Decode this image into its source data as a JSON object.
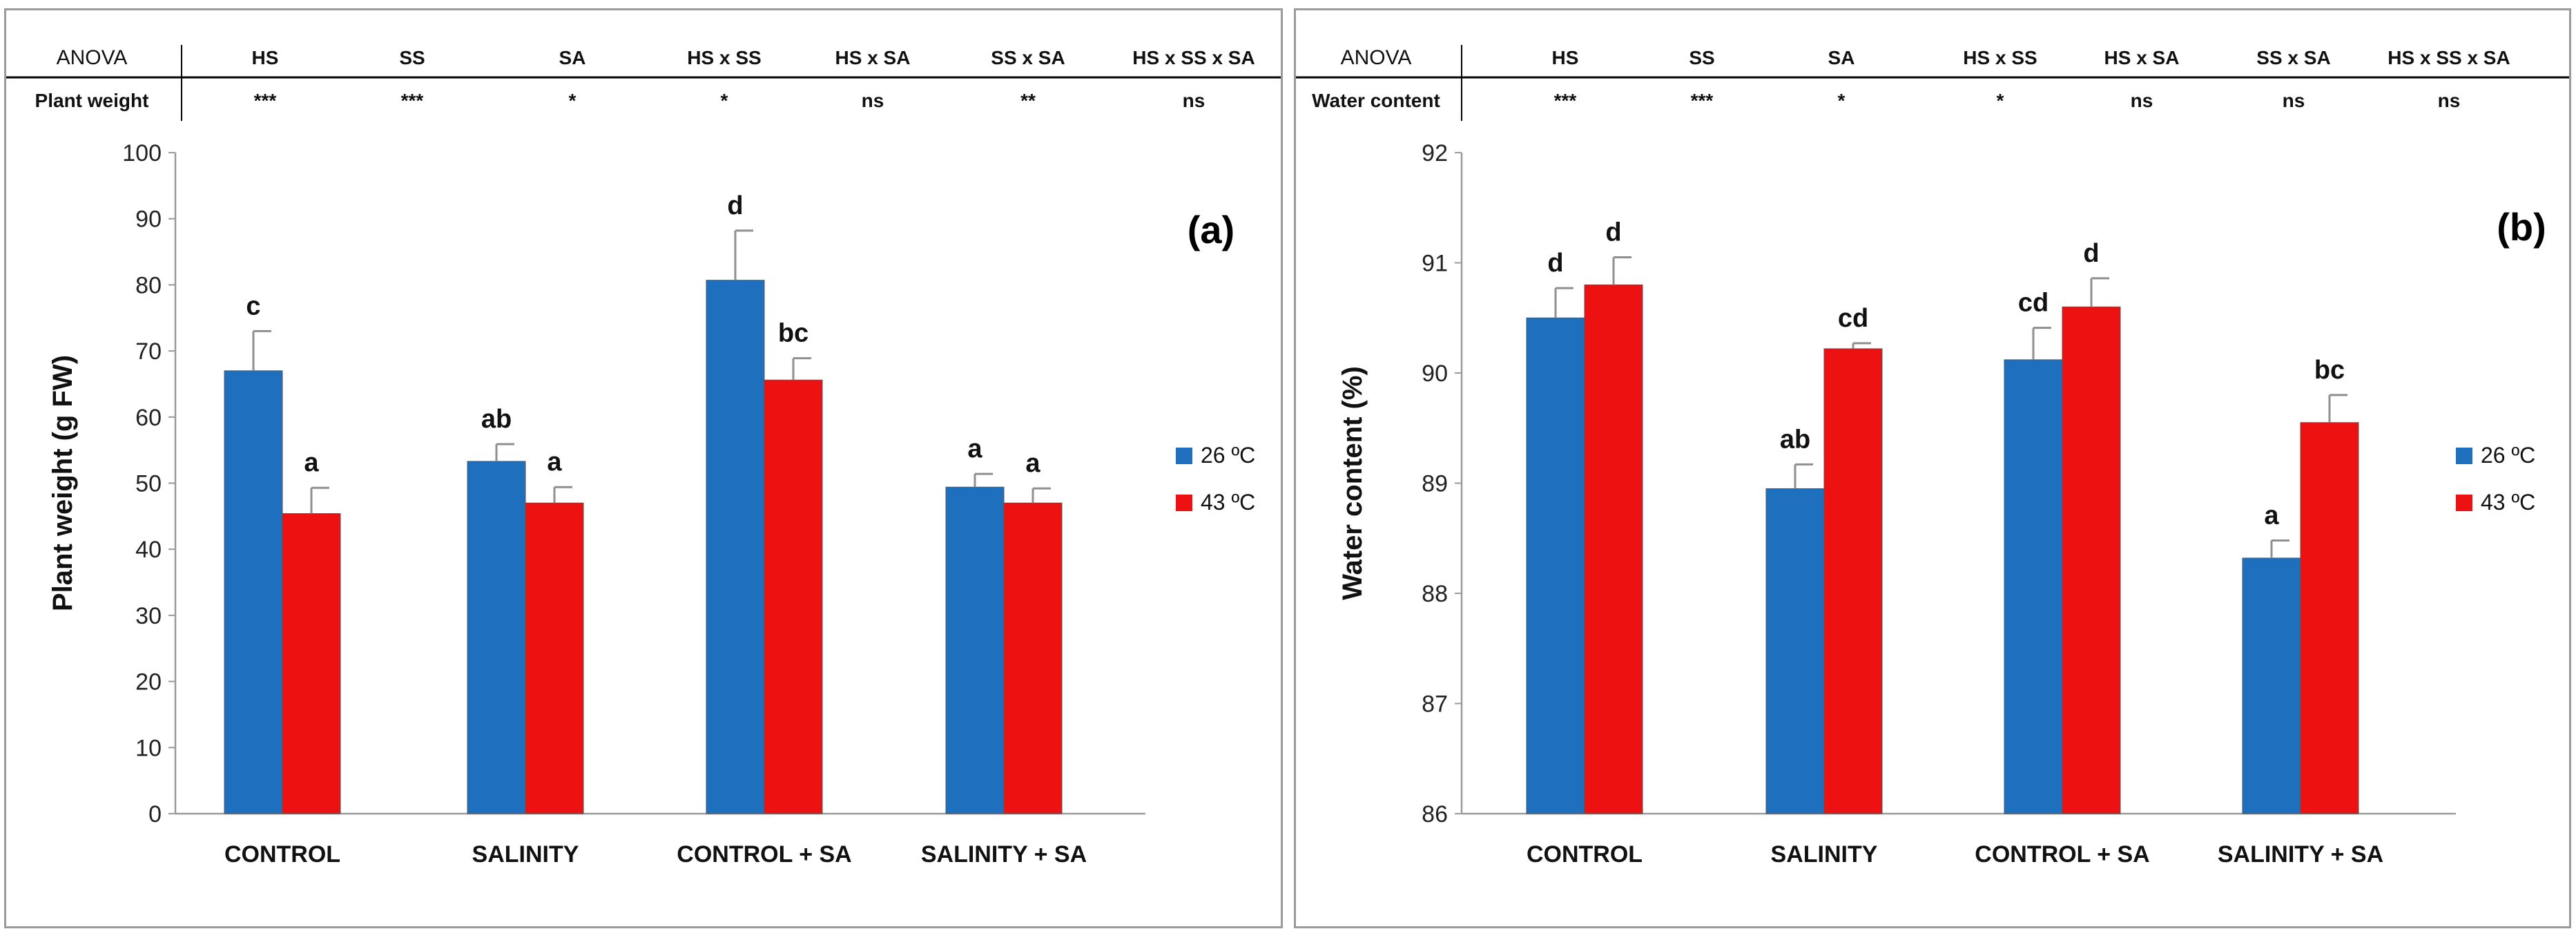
{
  "anova": {
    "header_label": "ANOVA",
    "factors": [
      "HS",
      "SS",
      "SA",
      "HS x SS",
      "HS x SA",
      "SS x SA",
      "HS x SS x SA"
    ]
  },
  "colors": {
    "series1": "#1F6FBF",
    "series2": "#EE1111",
    "error_bar": "#8f8f8f",
    "axis": "#9a9a9a"
  },
  "chart_data": [
    {
      "type": "bar",
      "panel_label": "(a)",
      "anova_row_label": "Plant weight",
      "anova_values": [
        "***",
        "***",
        "*",
        "*",
        "ns",
        "**",
        "ns"
      ],
      "categories": [
        "CONTROL",
        "SALINITY",
        "CONTROL + SA",
        "SALINITY + SA"
      ],
      "series": [
        {
          "name": "26 ºC",
          "values": [
            67,
            53.3,
            80.7,
            49.4
          ],
          "errors": [
            6,
            2.6,
            7.5,
            2
          ],
          "letters": [
            "c",
            "ab",
            "d",
            "a"
          ]
        },
        {
          "name": "43 ºC",
          "values": [
            45.4,
            47,
            65.6,
            47
          ],
          "errors": [
            3.9,
            2.4,
            3.3,
            2.2
          ],
          "letters": [
            "a",
            "a",
            "bc",
            "a"
          ]
        }
      ],
      "ylabel": "Plant weight (g FW)",
      "ylim": [
        0,
        100
      ],
      "yticks": [
        "0",
        "10",
        "20",
        "30",
        "40",
        "50",
        "60",
        "70",
        "80",
        "90",
        "100"
      ],
      "legend_position": "right"
    },
    {
      "type": "bar",
      "panel_label": "(b)",
      "anova_row_label": "Water content",
      "anova_values": [
        "***",
        "***",
        "*",
        "*",
        "ns",
        "ns",
        "ns"
      ],
      "categories": [
        "CONTROL",
        "SALINITY",
        "CONTROL + SA",
        "SALINITY + SA"
      ],
      "series": [
        {
          "name": "26 ºC",
          "values": [
            90.5,
            88.95,
            90.12,
            88.32
          ],
          "errors": [
            0.27,
            0.22,
            0.29,
            0.16
          ],
          "letters": [
            "d",
            "ab",
            "cd",
            "a"
          ]
        },
        {
          "name": "43 ºC",
          "values": [
            90.8,
            90.22,
            90.6,
            89.55
          ],
          "errors": [
            0.25,
            0.05,
            0.26,
            0.25
          ],
          "letters": [
            "d",
            "cd",
            "d",
            "bc"
          ]
        }
      ],
      "ylabel": "Water content (%)",
      "ylim": [
        86,
        92
      ],
      "yticks": [
        "86",
        "87",
        "88",
        "89",
        "90",
        "91",
        "92"
      ],
      "legend_position": "right"
    }
  ]
}
